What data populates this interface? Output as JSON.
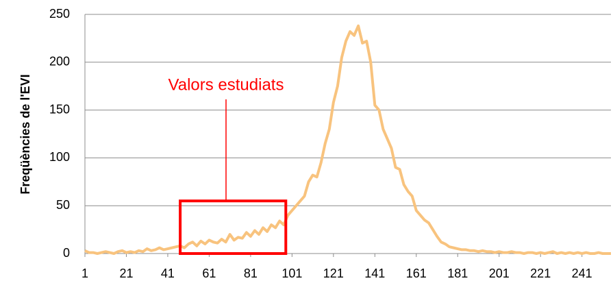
{
  "chart_data": {
    "type": "line",
    "y_label": "Freqüències de l'EVI",
    "x": [
      1,
      3,
      5,
      7,
      9,
      11,
      13,
      15,
      17,
      19,
      21,
      23,
      25,
      27,
      29,
      31,
      33,
      35,
      37,
      39,
      41,
      43,
      45,
      47,
      49,
      51,
      53,
      55,
      57,
      59,
      61,
      63,
      65,
      67,
      69,
      71,
      73,
      75,
      77,
      79,
      81,
      83,
      85,
      87,
      89,
      91,
      93,
      95,
      97,
      99,
      101,
      103,
      105,
      107,
      109,
      111,
      113,
      115,
      117,
      119,
      121,
      123,
      125,
      127,
      129,
      131,
      133,
      135,
      137,
      139,
      141,
      143,
      145,
      147,
      149,
      151,
      153,
      155,
      157,
      159,
      161,
      163,
      165,
      167,
      169,
      171,
      173,
      175,
      177,
      179,
      181,
      183,
      185,
      187,
      189,
      191,
      193,
      195,
      197,
      199,
      201,
      203,
      205,
      207,
      209,
      211,
      213,
      215,
      217,
      219,
      221,
      223,
      225,
      227,
      229,
      231,
      233,
      235,
      237,
      239,
      241,
      243,
      245,
      247,
      249,
      251,
      253,
      255
    ],
    "series": [
      {
        "color": "#f8c37e",
        "values": [
          3,
          1,
          1,
          0,
          1,
          2,
          1,
          0,
          2,
          3,
          1,
          2,
          1,
          3,
          2,
          5,
          3,
          4,
          6,
          4,
          5,
          6,
          7,
          8,
          6,
          10,
          12,
          8,
          13,
          10,
          14,
          12,
          11,
          15,
          12,
          20,
          14,
          17,
          16,
          22,
          18,
          24,
          20,
          27,
          23,
          30,
          27,
          34,
          30,
          40,
          45,
          50,
          55,
          60,
          75,
          82,
          80,
          95,
          115,
          130,
          158,
          175,
          205,
          222,
          232,
          228,
          238,
          220,
          222,
          200,
          155,
          150,
          130,
          120,
          110,
          90,
          88,
          72,
          65,
          60,
          45,
          40,
          35,
          32,
          25,
          18,
          12,
          10,
          7,
          6,
          5,
          4,
          4,
          3,
          3,
          2,
          3,
          2,
          2,
          1,
          2,
          1,
          1,
          2,
          1,
          1,
          0,
          1,
          1,
          0,
          1,
          0,
          1,
          2,
          0,
          1,
          0,
          1,
          0,
          1,
          0,
          1,
          0,
          0,
          1,
          0,
          0,
          0
        ]
      }
    ],
    "xlim": [
      1,
      255
    ],
    "xticks": [
      1,
      21,
      41,
      61,
      81,
      101,
      121,
      141,
      161,
      181,
      201,
      221,
      241
    ],
    "ylim": [
      0,
      250
    ],
    "yticks": [
      0,
      50,
      100,
      150,
      200,
      250
    ],
    "grid": true,
    "annotation": {
      "text": "Valors estudiats",
      "color": "#ff0000",
      "x": [
        47,
        98
      ],
      "y": [
        0,
        55
      ]
    }
  }
}
